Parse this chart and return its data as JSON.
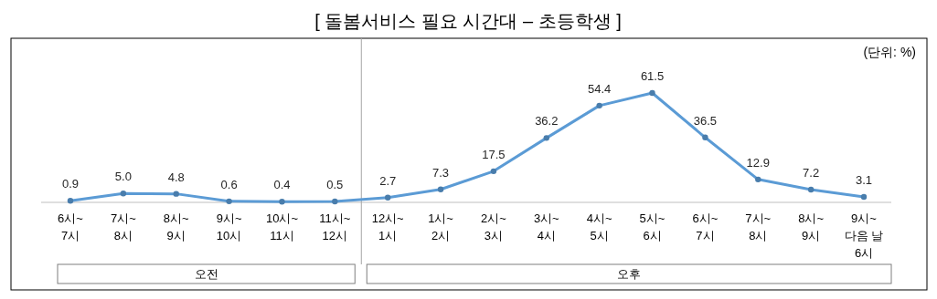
{
  "chart_data": {
    "type": "line",
    "title": "[ 돌봄서비스 필요 시간대 – 초등학생 ]",
    "categories": [
      "6시~\n7시",
      "7시~\n8시",
      "8시~\n9시",
      "9시~\n10시",
      "10시~\n11시",
      "11시~\n12시",
      "12시~\n1시",
      "1시~\n2시",
      "2시~\n3시",
      "3시~\n4시",
      "4시~\n5시",
      "5시~\n6시",
      "6시~\n7시",
      "7시~\n8시",
      "8시~\n9시",
      "9시~\n다음 날\n6시"
    ],
    "series": [
      {
        "color": "#5b9bd5",
        "values": [
          0.9,
          5.0,
          4.8,
          0.6,
          0.4,
          0.5,
          2.7,
          7.3,
          17.5,
          36.2,
          54.4,
          61.5,
          36.5,
          12.9,
          7.2,
          3.1
        ],
        "value_labels": [
          "0.9",
          "5.0",
          "4.8",
          "0.6",
          "0.4",
          "0.5",
          "2.7",
          "7.3",
          "17.5",
          "36.2",
          "54.4",
          "61.5",
          "36.5",
          "12.9",
          "7.2",
          "3.1"
        ]
      }
    ],
    "marker": "circle",
    "line_style": "solid",
    "annotations": [
      "(단위: %)",
      "오전",
      "오후"
    ]
  }
}
